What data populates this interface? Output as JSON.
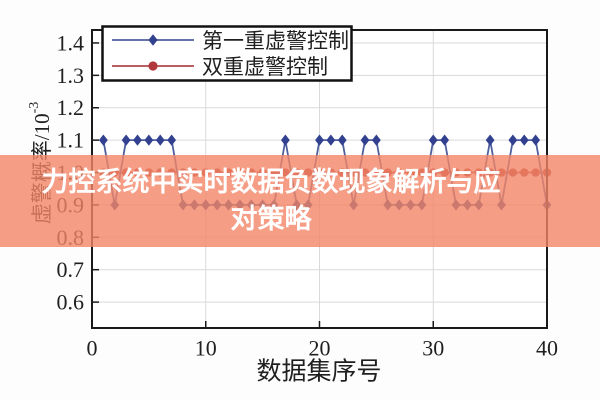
{
  "figure": {
    "bg": "#fdfdfd",
    "plot_bg": "#ffffff",
    "border_color": "#1a1a1a",
    "grid_color": "#d9d9d9",
    "text_color": "#1f1f1f"
  },
  "overlay": {
    "line1": "力控系统中实时数据负数现象解析与应",
    "line2": "对策略",
    "bg_color": "#f28666",
    "bg_opacity": 0.8,
    "text_color": "#ffffff"
  },
  "chart_data": {
    "type": "line",
    "title": "",
    "xlabel": "数据集序号",
    "ylabel": "虚警概率/10⁻³",
    "ylabel_main": "虚警概率/10",
    "ylabel_sup": "-3",
    "xlim": [
      0,
      40
    ],
    "ylim": [
      0.52,
      1.44
    ],
    "xticks": [
      0,
      10,
      20,
      30,
      40
    ],
    "yticks": [
      0.6,
      0.7,
      0.8,
      0.9,
      1.0,
      1.1,
      1.2,
      1.3,
      1.4
    ],
    "grid": true,
    "legend_position": "top-left",
    "x": [
      1,
      2,
      3,
      4,
      5,
      6,
      7,
      8,
      9,
      10,
      11,
      12,
      13,
      14,
      15,
      16,
      17,
      18,
      19,
      20,
      21,
      22,
      23,
      24,
      25,
      26,
      27,
      28,
      29,
      30,
      31,
      32,
      33,
      34,
      35,
      36,
      37,
      38,
      39,
      40
    ],
    "series": [
      {
        "name": "第一重虚警控制",
        "marker": "diamond",
        "color": "#31418f",
        "line_color": "#4f5f9e",
        "values": [
          1.1,
          0.9,
          1.1,
          1.1,
          1.1,
          1.1,
          1.1,
          0.9,
          0.9,
          0.9,
          0.9,
          0.9,
          0.9,
          0.9,
          0.9,
          0.9,
          1.1,
          0.9,
          0.9,
          1.1,
          1.1,
          1.1,
          0.9,
          1.1,
          1.1,
          0.9,
          0.9,
          0.9,
          0.9,
          1.1,
          1.1,
          0.9,
          0.9,
          0.9,
          1.1,
          0.9,
          1.1,
          1.1,
          1.1,
          0.9
        ]
      },
      {
        "name": "双重虚警控制",
        "marker": "circle",
        "color": "#b0383c",
        "line_color": "#b2484a",
        "values": [
          1.0,
          1.0,
          1.0,
          1.0,
          1.0,
          1.0,
          1.0,
          1.0,
          1.0,
          1.0,
          1.0,
          1.0,
          1.0,
          1.0,
          1.0,
          1.0,
          1.0,
          1.0,
          1.0,
          1.0,
          1.0,
          1.0,
          1.0,
          1.0,
          1.0,
          1.0,
          1.0,
          1.0,
          1.0,
          1.0,
          1.0,
          1.0,
          1.0,
          1.0,
          1.0,
          1.0,
          1.0,
          1.0,
          1.0,
          1.0
        ]
      }
    ]
  }
}
